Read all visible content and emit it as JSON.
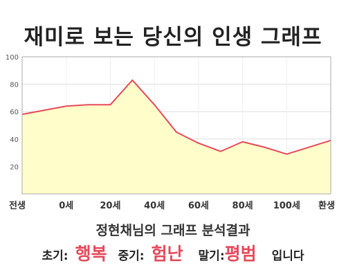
{
  "header": {
    "title": "재미로 보는 당신의 인생 그래프"
  },
  "chart_data": {
    "type": "area",
    "categories": [
      "전생",
      "0세",
      "20세",
      "40세",
      "60세",
      "80세",
      "100세",
      "환생"
    ],
    "x": [
      -20,
      0,
      10,
      20,
      30,
      40,
      50,
      60,
      70,
      80,
      90,
      100,
      110,
      120
    ],
    "values": [
      58,
      64,
      65,
      65,
      83,
      65,
      45,
      37,
      31,
      38,
      34,
      29,
      34,
      39
    ],
    "ylim": [
      0,
      100
    ],
    "yticks": [
      20,
      40,
      60,
      80,
      100
    ],
    "grid": true,
    "line_color": "#e8495a",
    "fill_color": "#fffdc9"
  },
  "summary": {
    "text": "정현채님의 그래프 분석결과"
  },
  "result": {
    "early_label": "초기:",
    "early_value": "행복",
    "mid_label": "중기:",
    "mid_value": "험난",
    "late_label": "말기:",
    "late_value": "평범",
    "suffix": "입니다"
  },
  "accent_color": "#e8495a"
}
